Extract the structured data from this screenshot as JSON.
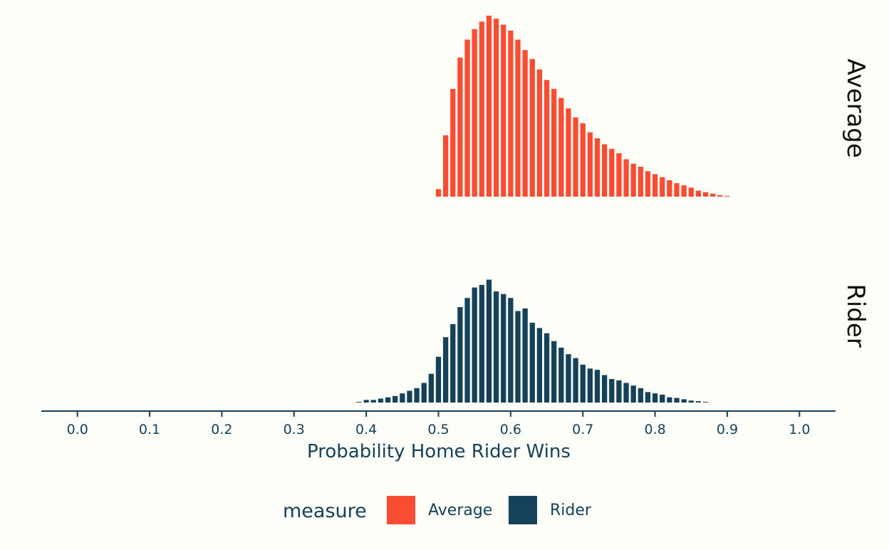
{
  "chart_data": {
    "type": "bar",
    "xlabel": "Probability Home Rider Wins",
    "ylabel": "",
    "xlim": [
      -0.05,
      1.05
    ],
    "x_ticks": [
      "0.0",
      "0.1",
      "0.2",
      "0.3",
      "0.4",
      "0.5",
      "0.6",
      "0.7",
      "0.8",
      "0.9",
      "1.0"
    ],
    "y_axis_shown": false,
    "grid": false,
    "legend": {
      "title": "measure",
      "placement": "bottom",
      "entries": [
        "Average",
        "Rider"
      ]
    },
    "bin_width": 0.01,
    "facets": [
      {
        "name": "Average",
        "color": "#f84d32",
        "x_start": 0.5,
        "values": [
          0.05,
          0.41,
          0.72,
          0.93,
          1.05,
          1.12,
          1.17,
          1.21,
          1.19,
          1.15,
          1.11,
          1.05,
          0.98,
          0.92,
          0.85,
          0.78,
          0.72,
          0.66,
          0.59,
          0.53,
          0.49,
          0.43,
          0.39,
          0.35,
          0.32,
          0.29,
          0.25,
          0.22,
          0.2,
          0.17,
          0.15,
          0.13,
          0.11,
          0.09,
          0.075,
          0.06,
          0.04,
          0.03,
          0.02,
          0.01,
          0.005
        ]
      },
      {
        "name": "Rider",
        "color": "#16415a",
        "x_start": 0.39,
        "values": [
          0.005,
          0.02,
          0.02,
          0.03,
          0.04,
          0.05,
          0.07,
          0.09,
          0.11,
          0.15,
          0.22,
          0.35,
          0.5,
          0.6,
          0.73,
          0.8,
          0.88,
          0.9,
          0.94,
          0.85,
          0.83,
          0.8,
          0.7,
          0.72,
          0.61,
          0.57,
          0.53,
          0.47,
          0.42,
          0.37,
          0.34,
          0.29,
          0.26,
          0.25,
          0.21,
          0.18,
          0.17,
          0.15,
          0.13,
          0.11,
          0.08,
          0.07,
          0.06,
          0.04,
          0.035,
          0.025,
          0.015,
          0.01,
          0.005
        ]
      }
    ]
  }
}
